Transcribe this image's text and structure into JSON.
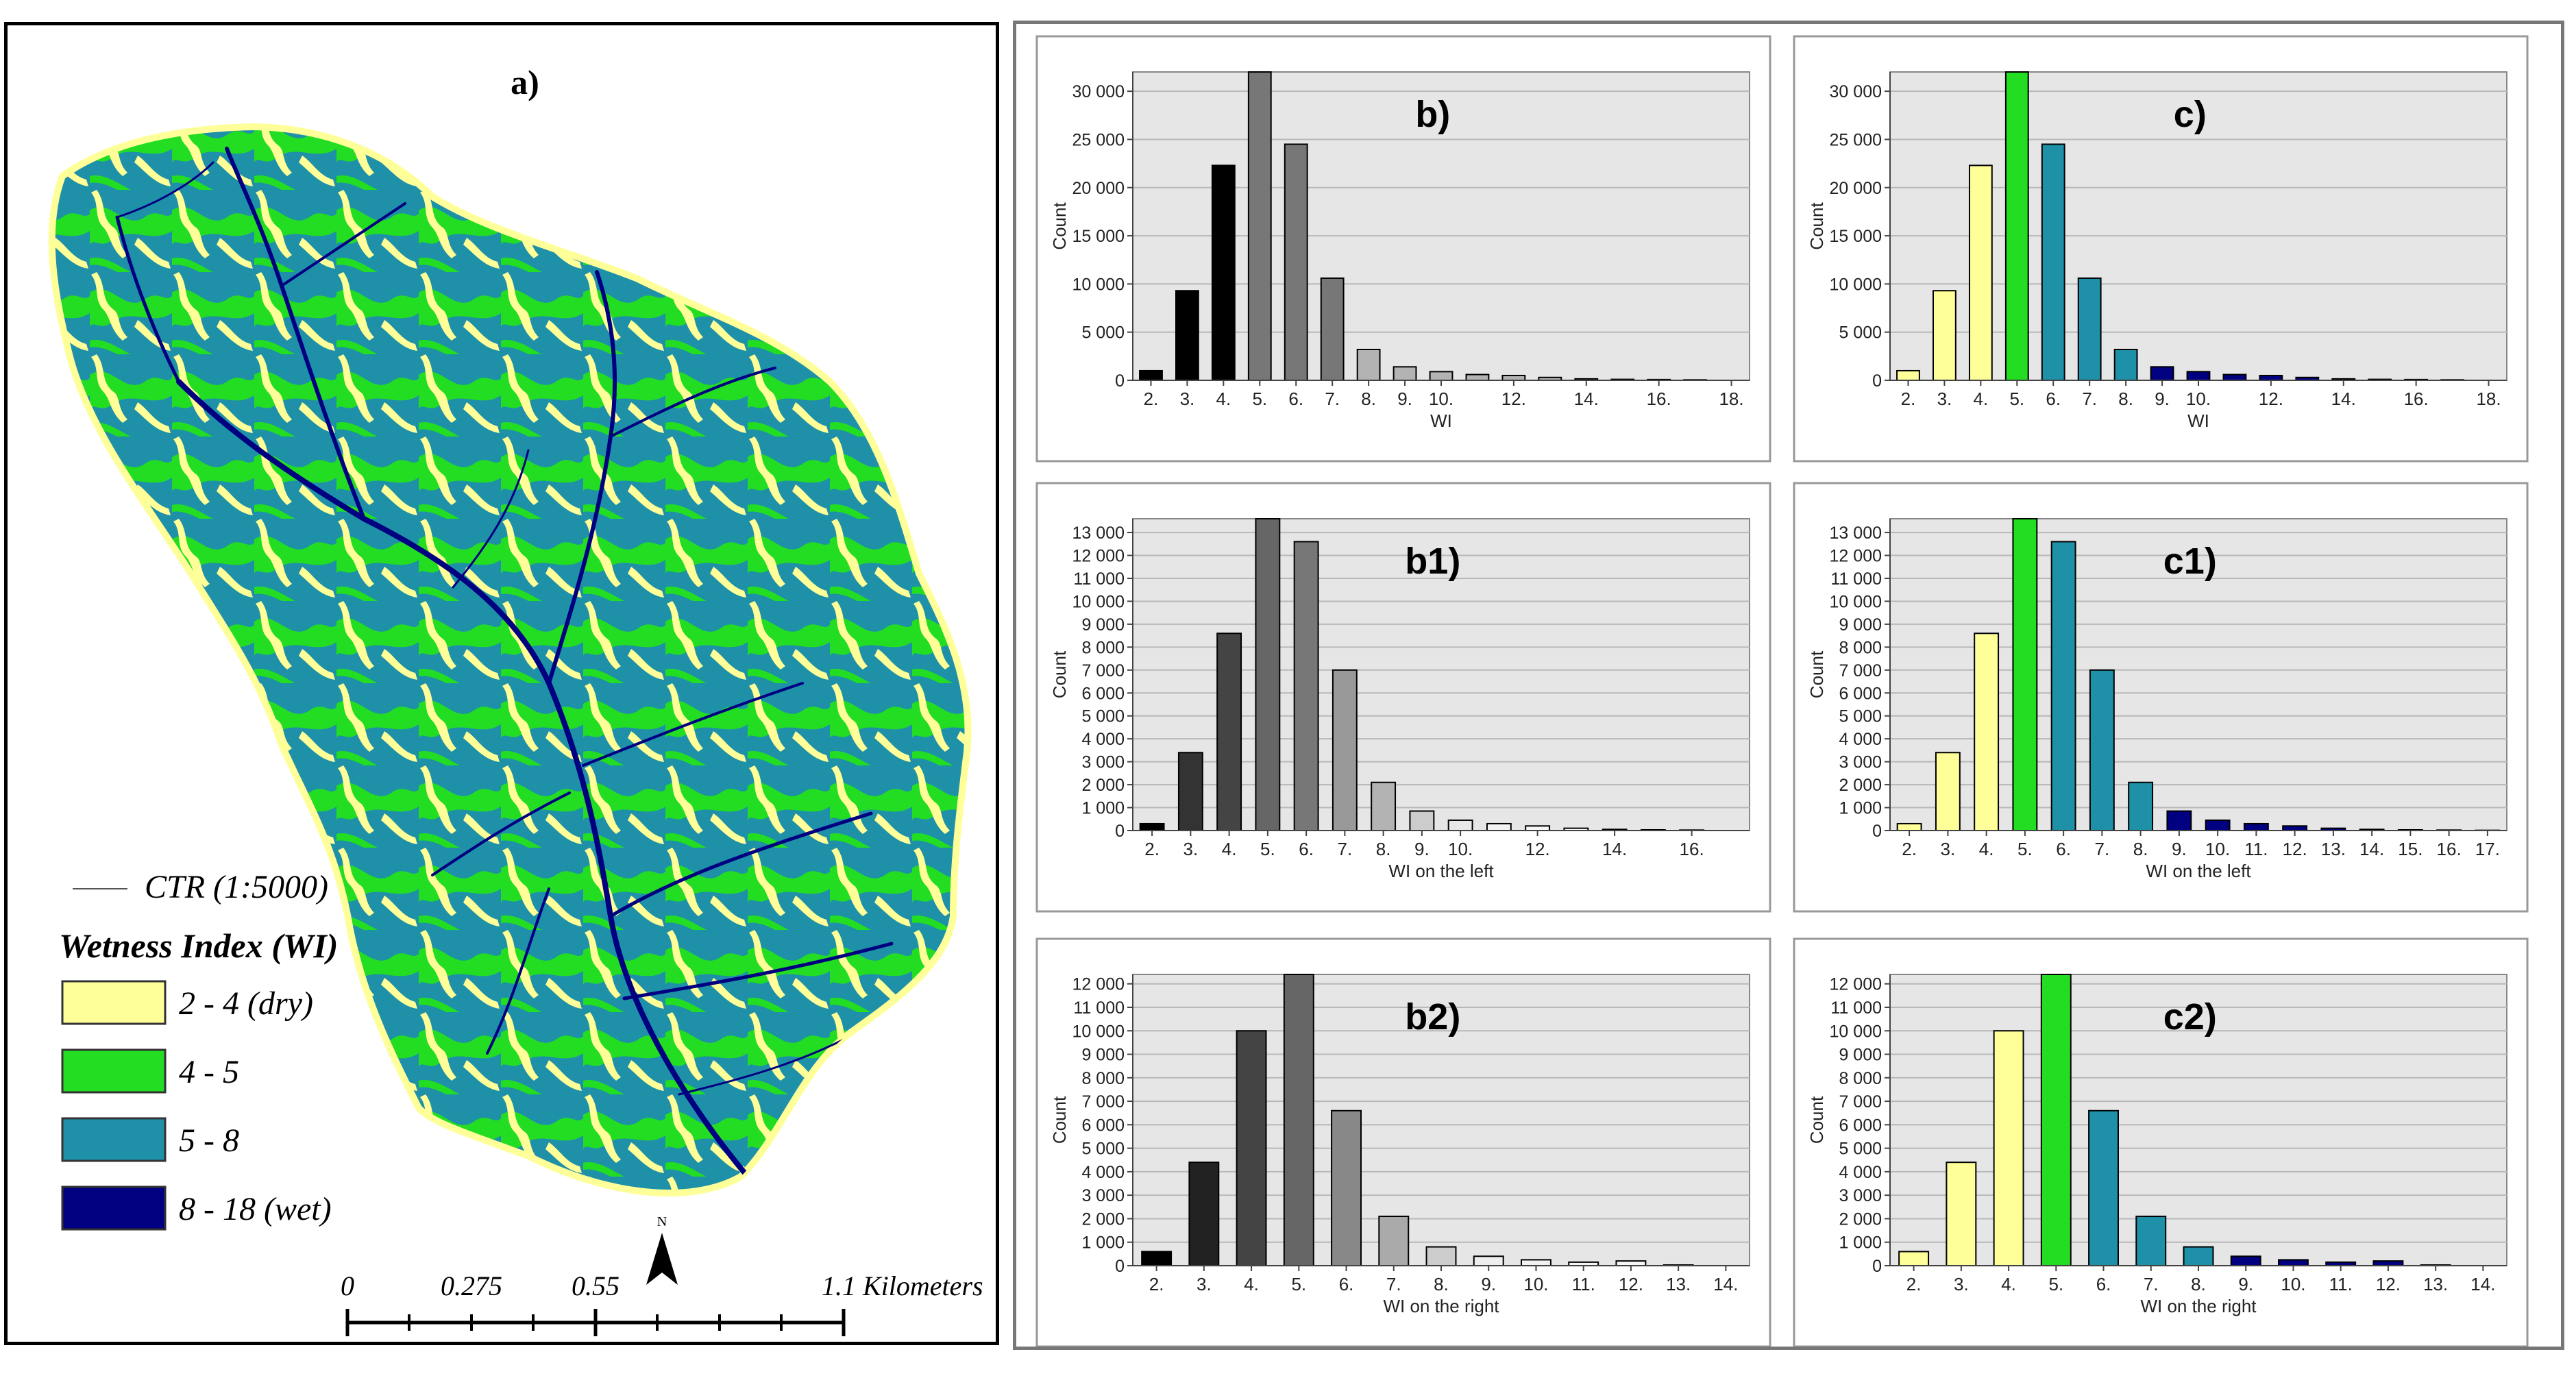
{
  "map": {
    "label": "a)",
    "ctr_label": "CTR  (1:5000)",
    "legend_title": "Wetness Index (WI)",
    "legend": [
      {
        "label": "2 - 4 (dry)",
        "color": "#ffff99"
      },
      {
        "label": "4 - 5",
        "color": "#22dd22"
      },
      {
        "label": "5 - 8",
        "color": "#1e90a8"
      },
      {
        "label": "8 - 18 (wet)",
        "color": "#000080"
      }
    ],
    "scale_labels": [
      "0",
      "0.275",
      "0.55",
      "1.1 Kilometers"
    ],
    "north_label": "N"
  },
  "chart_data": [
    {
      "id": "b",
      "type": "bar",
      "label": "b)",
      "xlabel": "WI",
      "ylabel": "Count",
      "ylim": [
        0,
        32000
      ],
      "yticks": [
        "0",
        "5 000",
        "10 000",
        "15 000",
        "20 000",
        "25 000",
        "30 000"
      ],
      "ytick_values": [
        0,
        5000,
        10000,
        15000,
        20000,
        25000,
        30000
      ],
      "x_range": [
        1.5,
        18.5
      ],
      "xtick_values": [
        2,
        3,
        4,
        5,
        6,
        7,
        8,
        9,
        10,
        12,
        14,
        16,
        18
      ],
      "xticks": [
        "2.",
        "3.",
        "4.",
        "5.",
        "6.",
        "7.",
        "8.",
        "9.",
        "10.",
        "12.",
        "14.",
        "16.",
        "18."
      ],
      "x": [
        2,
        3,
        4,
        5,
        6,
        7,
        8,
        9,
        10,
        11,
        12,
        13,
        14,
        15,
        16,
        17
      ],
      "values": [
        1000,
        9300,
        22300,
        32500,
        24500,
        10600,
        3200,
        1400,
        900,
        600,
        500,
        300,
        150,
        100,
        80,
        50
      ],
      "colors": [
        "#000000",
        "#000000",
        "#000000",
        "#777777",
        "#777777",
        "#777777",
        "#b3b3b3",
        "#b3b3b3",
        "#b3b3b3",
        "#b3b3b3",
        "#b3b3b3",
        "#b3b3b3",
        "#b3b3b3",
        "#b3b3b3",
        "#b3b3b3",
        "#b3b3b3"
      ]
    },
    {
      "id": "c",
      "type": "bar",
      "label": "c)",
      "xlabel": "WI",
      "ylabel": "Count",
      "ylim": [
        0,
        32000
      ],
      "yticks": [
        "0",
        "5 000",
        "10 000",
        "15 000",
        "20 000",
        "25 000",
        "30 000"
      ],
      "ytick_values": [
        0,
        5000,
        10000,
        15000,
        20000,
        25000,
        30000
      ],
      "x_range": [
        1.5,
        18.5
      ],
      "xtick_values": [
        2,
        3,
        4,
        5,
        6,
        7,
        8,
        9,
        10,
        12,
        14,
        16,
        18
      ],
      "xticks": [
        "2.",
        "3.",
        "4.",
        "5.",
        "6.",
        "7.",
        "8.",
        "9.",
        "10.",
        "12.",
        "14.",
        "16.",
        "18."
      ],
      "x": [
        2,
        3,
        4,
        5,
        6,
        7,
        8,
        9,
        10,
        11,
        12,
        13,
        14,
        15,
        16,
        17
      ],
      "values": [
        1000,
        9300,
        22300,
        32500,
        24500,
        10600,
        3200,
        1400,
        900,
        600,
        500,
        300,
        150,
        100,
        80,
        50
      ],
      "colors": [
        "#ffff99",
        "#ffff99",
        "#ffff99",
        "#22dd22",
        "#1e90a8",
        "#1e90a8",
        "#1e90a8",
        "#000080",
        "#000080",
        "#000080",
        "#000080",
        "#000080",
        "#000080",
        "#000080",
        "#000080",
        "#000080"
      ]
    },
    {
      "id": "b1",
      "type": "bar",
      "label": "b1)",
      "xlabel": "WI on the left",
      "ylabel": "Count",
      "ylim": [
        0,
        13600
      ],
      "yticks": [
        "0",
        "1 000",
        "2 000",
        "3 000",
        "4 000",
        "5 000",
        "6 000",
        "7 000",
        "8 000",
        "9 000",
        "10 000",
        "11 000",
        "12 000",
        "13 000"
      ],
      "ytick_values": [
        0,
        1000,
        2000,
        3000,
        4000,
        5000,
        6000,
        7000,
        8000,
        9000,
        10000,
        11000,
        12000,
        13000
      ],
      "x_range": [
        1.5,
        17.5
      ],
      "xtick_values": [
        2,
        3,
        4,
        5,
        6,
        7,
        8,
        9,
        10,
        12,
        14,
        16
      ],
      "xticks": [
        "2.",
        "3.",
        "4.",
        "5.",
        "6.",
        "7.",
        "8.",
        "9.",
        "10.",
        "12.",
        "14.",
        "16."
      ],
      "x": [
        2,
        3,
        4,
        5,
        6,
        7,
        8,
        9,
        10,
        11,
        12,
        13,
        14,
        15,
        16
      ],
      "values": [
        300,
        3400,
        8600,
        13600,
        12600,
        7000,
        2100,
        850,
        450,
        300,
        200,
        100,
        50,
        30,
        20
      ],
      "colors": [
        "#000000",
        "#333333",
        "#444444",
        "#666666",
        "#777777",
        "#999999",
        "#b3b3b3",
        "#cccccc",
        "#e8e8e8",
        "#f2f2f2",
        "#f5f5f5",
        "#f7f7f7",
        "#f9f9f9",
        "#fbfbfb",
        "#fcfcfc"
      ]
    },
    {
      "id": "c1",
      "type": "bar",
      "label": "c1)",
      "xlabel": "WI on the left",
      "ylabel": "Count",
      "ylim": [
        0,
        13600
      ],
      "yticks": [
        "0",
        "1 000",
        "2 000",
        "3 000",
        "4 000",
        "5 000",
        "6 000",
        "7 000",
        "8 000",
        "9 000",
        "10 000",
        "11 000",
        "12 000",
        "13 000"
      ],
      "ytick_values": [
        0,
        1000,
        2000,
        3000,
        4000,
        5000,
        6000,
        7000,
        8000,
        9000,
        10000,
        11000,
        12000,
        13000
      ],
      "x_range": [
        1.5,
        17.5
      ],
      "xtick_values": [
        2,
        3,
        4,
        5,
        6,
        7,
        8,
        9,
        10,
        11,
        12,
        13,
        14,
        15,
        16,
        17
      ],
      "xticks": [
        "2.",
        "3.",
        "4.",
        "5.",
        "6.",
        "7.",
        "8.",
        "9.",
        "10.",
        "11.",
        "12.",
        "13.",
        "14.",
        "15.",
        "16.",
        "17."
      ],
      "x": [
        2,
        3,
        4,
        5,
        6,
        7,
        8,
        9,
        10,
        11,
        12,
        13,
        14,
        15,
        16,
        17
      ],
      "values": [
        300,
        3400,
        8600,
        13600,
        12600,
        7000,
        2100,
        850,
        450,
        300,
        200,
        100,
        50,
        30,
        20,
        10
      ],
      "colors": [
        "#ffff99",
        "#ffff99",
        "#ffff99",
        "#22dd22",
        "#1e90a8",
        "#1e90a8",
        "#1e90a8",
        "#000080",
        "#000080",
        "#000080",
        "#000080",
        "#000080",
        "#000080",
        "#000080",
        "#000080",
        "#000080"
      ]
    },
    {
      "id": "b2",
      "type": "bar",
      "label": "b2)",
      "xlabel": "WI on the right",
      "ylabel": "Count",
      "ylim": [
        0,
        12400
      ],
      "yticks": [
        "0",
        "1 000",
        "2 000",
        "3 000",
        "4 000",
        "5 000",
        "6 000",
        "7 000",
        "8 000",
        "9 000",
        "10 000",
        "11 000",
        "12 000"
      ],
      "ytick_values": [
        0,
        1000,
        2000,
        3000,
        4000,
        5000,
        6000,
        7000,
        8000,
        9000,
        10000,
        11000,
        12000
      ],
      "x_range": [
        1.5,
        14.5
      ],
      "xtick_values": [
        2,
        3,
        4,
        5,
        6,
        7,
        8,
        9,
        10,
        11,
        12,
        13,
        14
      ],
      "xticks": [
        "2.",
        "3.",
        "4.",
        "5.",
        "6.",
        "7.",
        "8.",
        "9.",
        "10.",
        "11.",
        "12.",
        "13.",
        "14."
      ],
      "x": [
        2,
        3,
        4,
        5,
        6,
        7,
        8,
        9,
        10,
        11,
        12,
        13
      ],
      "values": [
        600,
        4400,
        10000,
        12400,
        6600,
        2100,
        800,
        400,
        250,
        150,
        200,
        30
      ],
      "colors": [
        "#000000",
        "#222222",
        "#444444",
        "#666666",
        "#888888",
        "#aaaaaa",
        "#cccccc",
        "#eeeeee",
        "#f2f2f2",
        "#f5f5f5",
        "#f7f7f7",
        "#fafafa"
      ]
    },
    {
      "id": "c2",
      "type": "bar",
      "label": "c2)",
      "xlabel": "WI on the right",
      "ylabel": "Count",
      "ylim": [
        0,
        12400
      ],
      "yticks": [
        "0",
        "1 000",
        "2 000",
        "3 000",
        "4 000",
        "5 000",
        "6 000",
        "7 000",
        "8 000",
        "9 000",
        "10 000",
        "11 000",
        "12 000"
      ],
      "ytick_values": [
        0,
        1000,
        2000,
        3000,
        4000,
        5000,
        6000,
        7000,
        8000,
        9000,
        10000,
        11000,
        12000
      ],
      "x_range": [
        1.5,
        14.5
      ],
      "xtick_values": [
        2,
        3,
        4,
        5,
        6,
        7,
        8,
        9,
        10,
        11,
        12,
        13,
        14
      ],
      "xticks": [
        "2.",
        "3.",
        "4.",
        "5.",
        "6.",
        "7.",
        "8.",
        "9.",
        "10.",
        "11.",
        "12.",
        "13.",
        "14."
      ],
      "x": [
        2,
        3,
        4,
        5,
        6,
        7,
        8,
        9,
        10,
        11,
        12,
        13
      ],
      "values": [
        600,
        4400,
        10000,
        12400,
        6600,
        2100,
        800,
        400,
        250,
        150,
        200,
        30
      ],
      "colors": [
        "#ffff99",
        "#ffff99",
        "#ffff99",
        "#22dd22",
        "#1e90a8",
        "#1e90a8",
        "#1e90a8",
        "#000080",
        "#000080",
        "#000080",
        "#000080",
        "#000080"
      ]
    }
  ]
}
